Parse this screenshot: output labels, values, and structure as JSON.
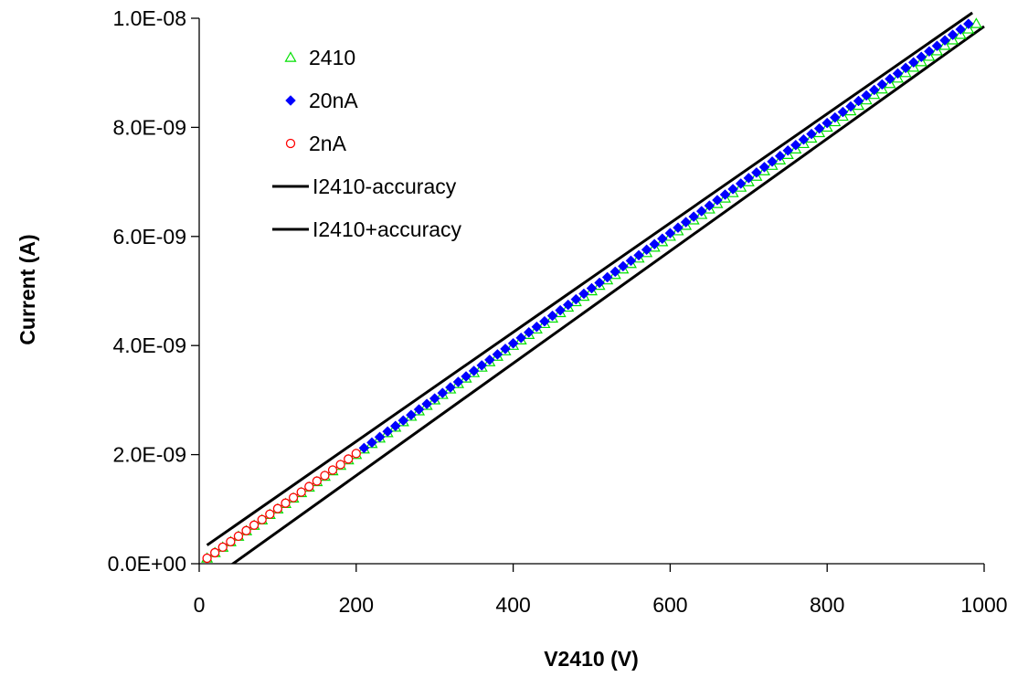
{
  "chart_data": {
    "type": "scatter",
    "title": "",
    "xlabel": "V2410 (V)",
    "ylabel": "Current (A)",
    "xlim": [
      0,
      1000
    ],
    "ylim": [
      0,
      1e-08
    ],
    "x_ticks": [
      0,
      200,
      400,
      600,
      800,
      1000
    ],
    "x_tick_labels": [
      "0",
      "200",
      "400",
      "600",
      "800",
      "1000"
    ],
    "y_ticks": [
      0,
      2e-09,
      4e-09,
      6e-09,
      8e-09,
      1e-08
    ],
    "y_tick_labels": [
      "0.0E+00",
      "2.0E-09",
      "4.0E-09",
      "6.0E-09",
      "8.0E-09",
      "1.0E-08"
    ],
    "grid": false,
    "legend_position": "top-left",
    "series": [
      {
        "name": "2410",
        "marker": "triangle",
        "color": "#00e000",
        "x": {
          "start": 10,
          "end": 990,
          "step": 10
        },
        "y": {
          "slope": 1e-11,
          "intercept": 0
        }
      },
      {
        "name": "20nA",
        "marker": "diamond",
        "color": "#0000ff",
        "x": {
          "start": 210,
          "end": 980,
          "step": 10
        },
        "y": {
          "slope": 1.01e-11,
          "intercept": 0
        }
      },
      {
        "name": "2nA",
        "marker": "circle",
        "color": "#ff0000",
        "x": {
          "start": 10,
          "end": 200,
          "step": 10
        },
        "y": {
          "slope": 1.01e-11,
          "intercept": 0
        }
      },
      {
        "name": "I2410-accuracy",
        "marker": "line",
        "color": "#000000",
        "x": [
          10,
          1000
        ],
        "y": [
          -3.4e-10,
          9.85e-09
        ]
      },
      {
        "name": "I2410+accuracy",
        "marker": "line",
        "color": "#000000",
        "x": [
          10,
          985
        ],
        "y": [
          3.4e-10,
          1.01e-08
        ]
      }
    ]
  }
}
